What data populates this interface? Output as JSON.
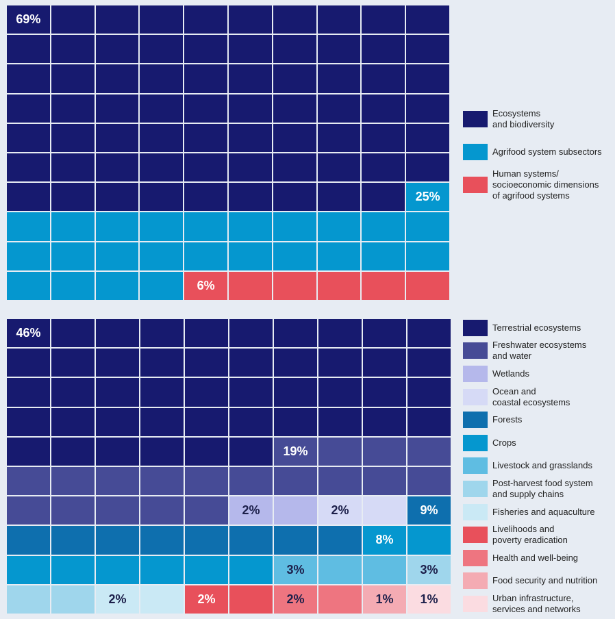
{
  "chart_data": [
    {
      "type": "waffle",
      "categories": [
        "Ecosystems\nand biodiversity",
        "Agrifood system subsectors",
        "Human systems/\nsocioeconomic dimensions\nof agrifood systems"
      ],
      "values": [
        69,
        25,
        6
      ],
      "value_labels": [
        "69%",
        "25%",
        "6%"
      ],
      "colors": [
        "#171a6f",
        "#0597cf",
        "#e8505b"
      ]
    },
    {
      "type": "waffle",
      "categories": [
        "Terrestrial ecosystems",
        "Freshwater ecosystems\nand water",
        "Wetlands",
        "Ocean and\ncoastal ecosystems",
        "Forests",
        "Crops",
        "Livestock and grasslands",
        "Post-harvest food system\nand supply chains",
        "Fisheries and aquaculture",
        "Livelihoods and\npoverty eradication",
        "Health and well-being",
        "Food security and nutrition",
        "Urban infrastructure,\nservices and networks"
      ],
      "values": [
        46,
        19,
        2,
        2,
        9,
        8,
        3,
        3,
        2,
        2,
        2,
        1,
        1
      ],
      "value_labels": [
        "46%",
        "19%",
        "2%",
        "2%",
        "9%",
        "8%",
        "3%",
        "3%",
        "2%",
        "2%",
        "2%",
        "1%",
        "1%"
      ],
      "colors": [
        "#171a6f",
        "#464b96",
        "#b5b8eb",
        "#d6daf6",
        "#0e6fae",
        "#0597cf",
        "#5fbde2",
        "#9fd6ec",
        "#cae9f5",
        "#e8505b",
        "#ee7580",
        "#f4abb3",
        "#fbdce1"
      ]
    }
  ]
}
